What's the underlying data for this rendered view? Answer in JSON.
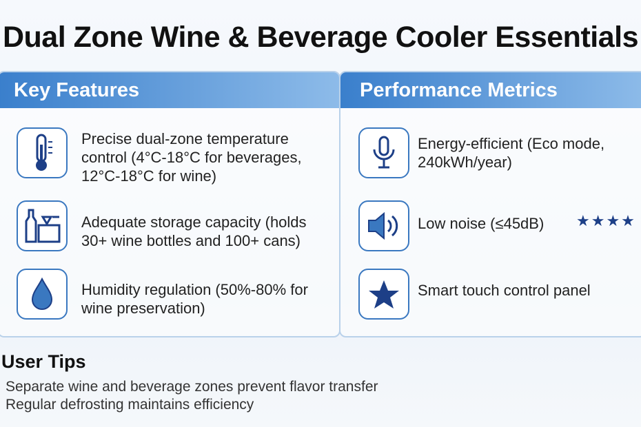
{
  "header": {
    "title": "Dual Zone Wine & Beverage Cooler Essentials"
  },
  "panels": [
    {
      "title": "Key Features",
      "items": [
        {
          "text": "Precise dual-zone temperature control (4°C-18°C for beverages, 12°C-18°C for wine)"
        },
        {
          "text": "Adequate storage capacity (holds 30+ wine bottles and 100+ cans)"
        },
        {
          "text": "Humidity regulation (50%-80% for wine preservation)"
        }
      ]
    },
    {
      "title": "Performance Metrics",
      "items": [
        {
          "text": "Energy-efficient (Eco mode, 240kWh/year)"
        },
        {
          "text": "Low noise (≤45dB)",
          "rating": "★★★★"
        },
        {
          "text": "Smart touch control panel"
        }
      ]
    }
  ],
  "tips": {
    "title": "User Tips",
    "lines": [
      "Separate wine and beverage zones prevent flavor transfer",
      "Regular defrosting maintains efficiency"
    ]
  }
}
